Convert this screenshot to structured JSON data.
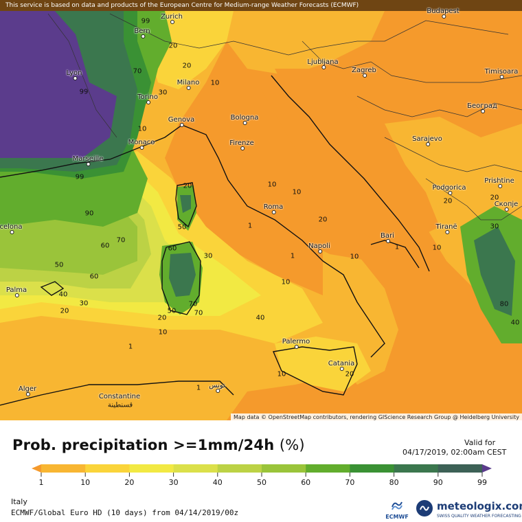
{
  "banner": "This service is based on data and products of the European Centre for Medium-range Weather Forecasts (ECMWF)",
  "attribution": "Map data © OpenStreetMap contributors, rendering GIScience Research Group @ Heidelberg University",
  "cities": [
    {
      "name": "Bern"
    },
    {
      "name": "Zurich"
    },
    {
      "name": "Budapest"
    },
    {
      "name": "Lyon"
    },
    {
      "name": "Milano"
    },
    {
      "name": "Torino"
    },
    {
      "name": "Ljubljana"
    },
    {
      "name": "Zagreb"
    },
    {
      "name": "Timisoara"
    },
    {
      "name": "Genova"
    },
    {
      "name": "Bologna"
    },
    {
      "name": "Београд"
    },
    {
      "name": "Monaco"
    },
    {
      "name": "Firenze"
    },
    {
      "name": "Sarajevo"
    },
    {
      "name": "Marseille"
    },
    {
      "name": "Podgorica"
    },
    {
      "name": "Prishtine"
    },
    {
      "name": "Roma"
    },
    {
      "name": "Скопје"
    },
    {
      "name": "celona"
    },
    {
      "name": "Tiranë"
    },
    {
      "name": "Bari"
    },
    {
      "name": "Napoli"
    },
    {
      "name": "Palma"
    },
    {
      "name": "Palermo"
    },
    {
      "name": "Catania"
    },
    {
      "name": "Alger"
    },
    {
      "name": "Constantine"
    },
    {
      "name": "قسنطينة"
    },
    {
      "name": "تونس"
    }
  ],
  "contour_labels": [
    "99",
    "20",
    "70",
    "30",
    "10",
    "20",
    "99",
    "10",
    "99",
    "90",
    "20",
    "10",
    "20",
    "30",
    "20",
    "50",
    "1",
    "60",
    "70",
    "60",
    "30",
    "1",
    "50",
    "60",
    "70",
    "10",
    "10",
    "20",
    "40",
    "30",
    "70",
    "40",
    "10",
    "20",
    "50",
    "80",
    "40",
    "10",
    "20",
    "1",
    "10",
    "20",
    "1",
    "1",
    "10"
  ],
  "legend": {
    "title": "Prob. precipitation >=1mm/24h",
    "unit": "(%)",
    "valid_label": "Valid for",
    "valid_time": "04/17/2019, 02:00am CEST",
    "ticks": [
      "1",
      "10",
      "20",
      "30",
      "40",
      "50",
      "60",
      "70",
      "80",
      "90",
      "99"
    ],
    "colors": [
      "#f59a2c",
      "#f8b632",
      "#fad43a",
      "#f2e943",
      "#dbe04a",
      "#bcd245",
      "#9ac43a",
      "#62ad2d",
      "#3a9134",
      "#3b774e",
      "#3d6156",
      "#5b3c8c"
    ]
  },
  "footer": {
    "region": "Italy",
    "model": "ECMWF/Global Euro HD (10 days) from 04/14/2019/00z",
    "ecmwf": "ECMWF",
    "brand": "meteologix.com",
    "tagline": "SWISS QUALITY WEATHER FORECASTING"
  }
}
